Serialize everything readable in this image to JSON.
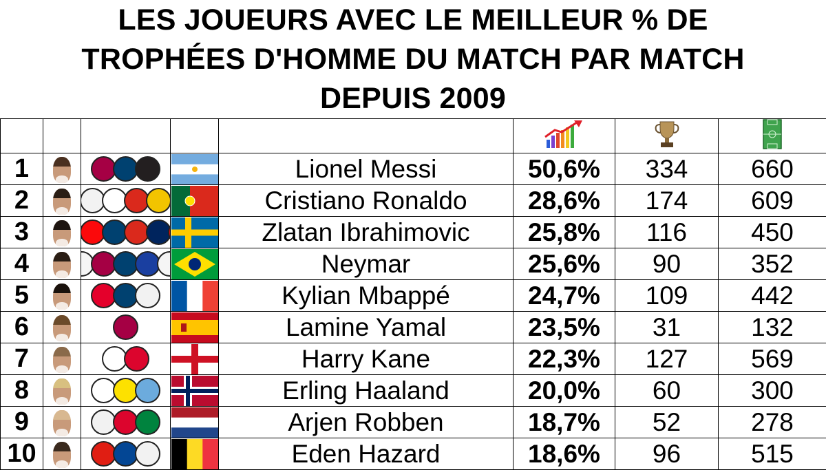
{
  "title_lines": [
    "LES JOUEURS AVEC LE MEILLEUR % DE",
    "TROPHÉES D'HOMME DU MATCH PAR MATCH",
    "DEPUIS 2009"
  ],
  "header_icons": {
    "percent": "bar-chart-growth-icon",
    "trophies": "trophy-icon",
    "matches": "football-pitch-icon"
  },
  "chart_data": {
    "type": "table",
    "title": "LES JOUEURS AVEC LE MEILLEUR % DE TROPHÉES D'HOMME DU MATCH PAR MATCH DEPUIS 2009",
    "columns": [
      "rank",
      "player",
      "percent",
      "motm_trophies",
      "matches"
    ],
    "rows": [
      {
        "rank": "1",
        "name": "Lionel Messi",
        "pct": "50,6%",
        "trophies": "334",
        "matches": "660",
        "hair": "#4a3020",
        "flag": "argentina",
        "clubs": [
          {
            "name": "fc-barcelona",
            "bg": "#a50044"
          },
          {
            "name": "psg",
            "bg": "#004170"
          },
          {
            "name": "inter-miami",
            "bg": "#231f20"
          }
        ]
      },
      {
        "rank": "2",
        "name": "Cristiano Ronaldo",
        "pct": "28,6%",
        "trophies": "174",
        "matches": "609",
        "hair": "#2a1e15",
        "flag": "portugal",
        "clubs": [
          {
            "name": "real-madrid",
            "bg": "#f2f2f2"
          },
          {
            "name": "juventus",
            "bg": "#ffffff"
          },
          {
            "name": "manchester-united",
            "bg": "#da291c"
          },
          {
            "name": "al-nassr",
            "bg": "#f2c400"
          }
        ]
      },
      {
        "rank": "3",
        "name": "Zlatan Ibrahimovic",
        "pct": "25,8%",
        "trophies": "116",
        "matches": "450",
        "hair": "#1e1510",
        "flag": "sweden",
        "clubs": [
          {
            "name": "fc-barcelona",
            "bg": "#a50044"
          },
          {
            "name": "ac-milan",
            "bg": "#fb090b"
          },
          {
            "name": "psg",
            "bg": "#004170"
          },
          {
            "name": "manchester-united",
            "bg": "#da291c"
          },
          {
            "name": "la-galaxy",
            "bg": "#00245d"
          },
          {
            "name": "ac-milan",
            "bg": "#fb090b"
          }
        ]
      },
      {
        "rank": "4",
        "name": "Neymar",
        "pct": "25,6%",
        "trophies": "90",
        "matches": "352",
        "hair": "#2a1e15",
        "flag": "brazil",
        "clubs": [
          {
            "name": "santos",
            "bg": "#f5f5f5"
          },
          {
            "name": "fc-barcelona",
            "bg": "#a50044"
          },
          {
            "name": "psg",
            "bg": "#004170"
          },
          {
            "name": "al-hilal",
            "bg": "#1a3fa0"
          },
          {
            "name": "santos",
            "bg": "#f5f5f5"
          }
        ]
      },
      {
        "rank": "5",
        "name": "Kylian Mbappé",
        "pct": "24,7%",
        "trophies": "109",
        "matches": "442",
        "hair": "#1a120c",
        "flag": "france",
        "clubs": [
          {
            "name": "as-monaco",
            "bg": "#e4002b"
          },
          {
            "name": "psg",
            "bg": "#004170"
          },
          {
            "name": "real-madrid",
            "bg": "#f2f2f2"
          }
        ]
      },
      {
        "rank": "6",
        "name": "Lamine Yamal",
        "pct": "23,5%",
        "trophies": "31",
        "matches": "132",
        "hair": "#6b4a2a",
        "flag": "spain",
        "clubs": [
          {
            "name": "fc-barcelona",
            "bg": "#a50044"
          }
        ]
      },
      {
        "rank": "7",
        "name": "Harry Kane",
        "pct": "22,3%",
        "trophies": "127",
        "matches": "569",
        "hair": "#8a6a4a",
        "flag": "england",
        "clubs": [
          {
            "name": "tottenham",
            "bg": "#ffffff"
          },
          {
            "name": "bayern-munich",
            "bg": "#dc052d"
          }
        ]
      },
      {
        "rank": "8",
        "name": "Erling Haaland",
        "pct": "20,0%",
        "trophies": "60",
        "matches": "300",
        "hair": "#d8c080",
        "flag": "norway",
        "clubs": [
          {
            "name": "rb-salzburg",
            "bg": "#ffffff"
          },
          {
            "name": "borussia-dortmund",
            "bg": "#fde100"
          },
          {
            "name": "manchester-city",
            "bg": "#6cabdd"
          }
        ]
      },
      {
        "rank": "9",
        "name": "Arjen Robben",
        "pct": "18,7%",
        "trophies": "52",
        "matches": "278",
        "hair": "#d8b890",
        "flag": "netherlands",
        "clubs": [
          {
            "name": "real-madrid",
            "bg": "#f2f2f2"
          },
          {
            "name": "bayern-munich",
            "bg": "#dc052d"
          },
          {
            "name": "fc-groningen",
            "bg": "#00833e"
          }
        ]
      },
      {
        "rank": "10",
        "name": "Eden Hazard",
        "pct": "18,6%",
        "trophies": "96",
        "matches": "515",
        "hair": "#3a2a1e",
        "flag": "belgium",
        "clubs": [
          {
            "name": "losc-lille",
            "bg": "#e01e13"
          },
          {
            "name": "chelsea",
            "bg": "#034694"
          },
          {
            "name": "real-madrid",
            "bg": "#f2f2f2"
          }
        ]
      }
    ]
  }
}
